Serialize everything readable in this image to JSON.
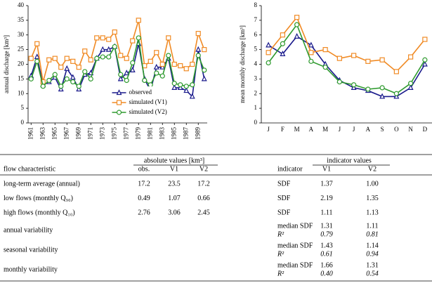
{
  "chart_data": [
    {
      "type": "line",
      "ylabel": "annual discharge [km³]",
      "x": [
        1961,
        1962,
        1963,
        1964,
        1965,
        1966,
        1967,
        1968,
        1969,
        1970,
        1971,
        1972,
        1973,
        1974,
        1975,
        1976,
        1977,
        1978,
        1979,
        1980,
        1981,
        1982,
        1983,
        1984,
        1985,
        1986,
        1987,
        1988,
        1989,
        1990
      ],
      "xlim": [
        1960.5,
        1990.5
      ],
      "xticks": [
        1961,
        1963,
        1965,
        1967,
        1969,
        1971,
        1973,
        1975,
        1977,
        1979,
        1981,
        1983,
        1985,
        1987,
        1989
      ],
      "ylim": [
        0,
        40
      ],
      "yticks": [
        0,
        5,
        10,
        15,
        20,
        25,
        30,
        35,
        40
      ],
      "legend": "lower center",
      "series": [
        {
          "name": "observed",
          "color": "#1a1a8c",
          "marker": "triangle",
          "values": [
            16,
            22.5,
            13,
            14,
            15.5,
            11.5,
            18.5,
            15.5,
            11.5,
            16.5,
            17,
            22,
            25,
            25,
            26,
            15,
            17,
            18,
            27,
            15,
            11,
            19,
            19,
            22,
            12,
            12,
            11,
            9,
            25,
            15
          ]
        },
        {
          "name": "simulated (V1)",
          "color": "#f08a24",
          "marker": "square",
          "values": [
            22,
            27,
            14,
            21.5,
            22,
            19,
            22,
            21,
            19,
            24.5,
            21.5,
            29,
            29,
            28.5,
            31,
            23,
            22,
            28,
            35,
            19.5,
            21,
            24,
            20,
            29,
            20,
            19.5,
            18.5,
            20,
            30.5,
            25
          ]
        },
        {
          "name": "simulated (V2)",
          "color": "#2e9a2e",
          "marker": "circle",
          "values": [
            15,
            21,
            12.5,
            14.5,
            16.5,
            12.5,
            15,
            14,
            12.5,
            17.5,
            15,
            22,
            22.5,
            22.5,
            26,
            16.5,
            14.5,
            20.5,
            29,
            14.5,
            13,
            17,
            16,
            23,
            13.5,
            13,
            12.5,
            13,
            23,
            18
          ]
        }
      ]
    },
    {
      "type": "line",
      "ylabel": "mean monthly discharge [km³]",
      "categories": [
        "J",
        "F",
        "M",
        "A",
        "M",
        "J",
        "J",
        "A",
        "S",
        "O",
        "N",
        "D"
      ],
      "ylim": [
        0,
        8
      ],
      "yticks": [
        0,
        1,
        2,
        3,
        4,
        5,
        6,
        7,
        8
      ],
      "series": [
        {
          "color": "#1a1a8c",
          "marker": "triangle",
          "values": [
            5.3,
            4.7,
            5.9,
            5.3,
            4.0,
            2.9,
            2.4,
            2.2,
            1.8,
            1.8,
            2.4,
            4.0
          ]
        },
        {
          "color": "#f08a24",
          "marker": "square",
          "values": [
            4.8,
            6.0,
            7.2,
            4.8,
            5.0,
            4.4,
            4.6,
            4.2,
            4.3,
            3.5,
            4.5,
            5.7
          ]
        },
        {
          "color": "#2e9a2e",
          "marker": "circle",
          "values": [
            4.1,
            5.4,
            6.7,
            4.2,
            3.8,
            2.8,
            2.6,
            2.3,
            2.4,
            2.0,
            2.7,
            4.3
          ]
        }
      ]
    }
  ],
  "table": {
    "group_headers": [
      "absolute values [km³]",
      "indicator values"
    ],
    "columns": [
      "flow characteristic",
      "obs.",
      "V1",
      "V2",
      "indicator",
      "V1",
      "V2"
    ],
    "rows": [
      [
        "long-term average (annual)",
        "17.2",
        "23.5",
        "17.2",
        "SDF",
        "1.37",
        "1.00"
      ],
      [
        "low flows (monthly Q₉₀)",
        "0.49",
        "1.07",
        "0.66",
        "SDF",
        "2.19",
        "1.35"
      ],
      [
        "high flows (monthly Q₁₀)",
        "2.76",
        "3.06",
        "2.45",
        "SDF",
        "1.11",
        "1.13"
      ]
    ],
    "variability_rows": [
      {
        "label": "annual variability",
        "indicators": [
          "median SDF",
          "R²"
        ],
        "v1": [
          "1.31",
          "0.79"
        ],
        "v2": [
          "1.11",
          "0.81"
        ]
      },
      {
        "label": "seasonal variability",
        "indicators": [
          "median SDF",
          "R²"
        ],
        "v1": [
          "1.43",
          "0.61"
        ],
        "v2": [
          "1.14",
          "0.94"
        ]
      },
      {
        "label": "monthly variability",
        "indicators": [
          "median SDF",
          "R²"
        ],
        "v1": [
          "1.66",
          "0.40"
        ],
        "v2": [
          "1.31",
          "0.54"
        ]
      }
    ]
  }
}
